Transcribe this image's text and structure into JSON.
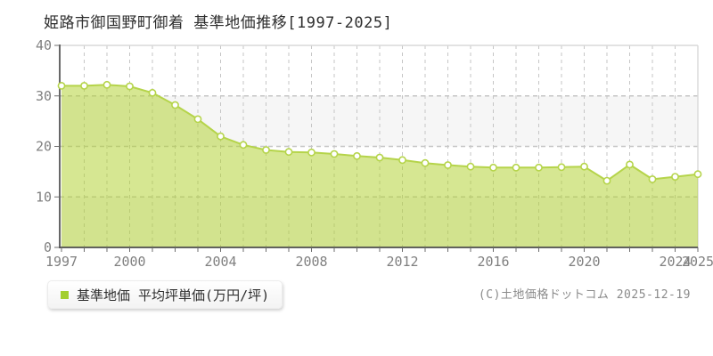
{
  "page": {
    "title": "姫路市御国野町御着 基準地価推移[1997-2025]",
    "footer_copyright": "(C)土地価格ドットコム 2025-12-19"
  },
  "legend": {
    "label": "基準地価 平均坪単価(万円/坪)",
    "marker_color": "#a3cf2f"
  },
  "chart_data": {
    "type": "area",
    "title": "姫路市御国野町御着 基準地価推移[1997-2025]",
    "xlabel": "",
    "ylabel": "平均坪単価(万円/坪)",
    "unit": "万円/坪",
    "x": [
      1997,
      1998,
      1999,
      2000,
      2001,
      2002,
      2003,
      2004,
      2005,
      2006,
      2007,
      2008,
      2009,
      2010,
      2011,
      2012,
      2013,
      2014,
      2015,
      2016,
      2017,
      2018,
      2019,
      2020,
      2021,
      2022,
      2023,
      2024,
      2025
    ],
    "series": [
      {
        "name": "基準地価 平均坪単価(万円/坪)",
        "values": [
          32.0,
          32.0,
          32.2,
          31.9,
          30.6,
          28.2,
          25.4,
          22.0,
          20.3,
          19.3,
          18.9,
          18.8,
          18.5,
          18.1,
          17.8,
          17.3,
          16.7,
          16.3,
          16.0,
          15.8,
          15.8,
          15.8,
          15.9,
          16.0,
          13.2,
          16.4,
          13.5,
          14.0,
          14.5
        ]
      }
    ],
    "ylim": [
      0,
      40
    ],
    "yticks": [
      0,
      10,
      20,
      30,
      40
    ],
    "xticks": [
      1997,
      2000,
      2004,
      2008,
      2012,
      2016,
      2020,
      2024,
      2025
    ],
    "grid": true,
    "legend_position": "bottom-left",
    "colors": {
      "area_fill": "rgba(173,207,37,0.5)",
      "line": "#b5d44a",
      "marker_fill": "#ffffff",
      "grid": "#c6c6c6",
      "band": "#f6f6f6",
      "border": "#d9d9d9",
      "axis": "#4d4d4d",
      "tick": "#6e6e6e",
      "tick_label": "#808080"
    }
  }
}
